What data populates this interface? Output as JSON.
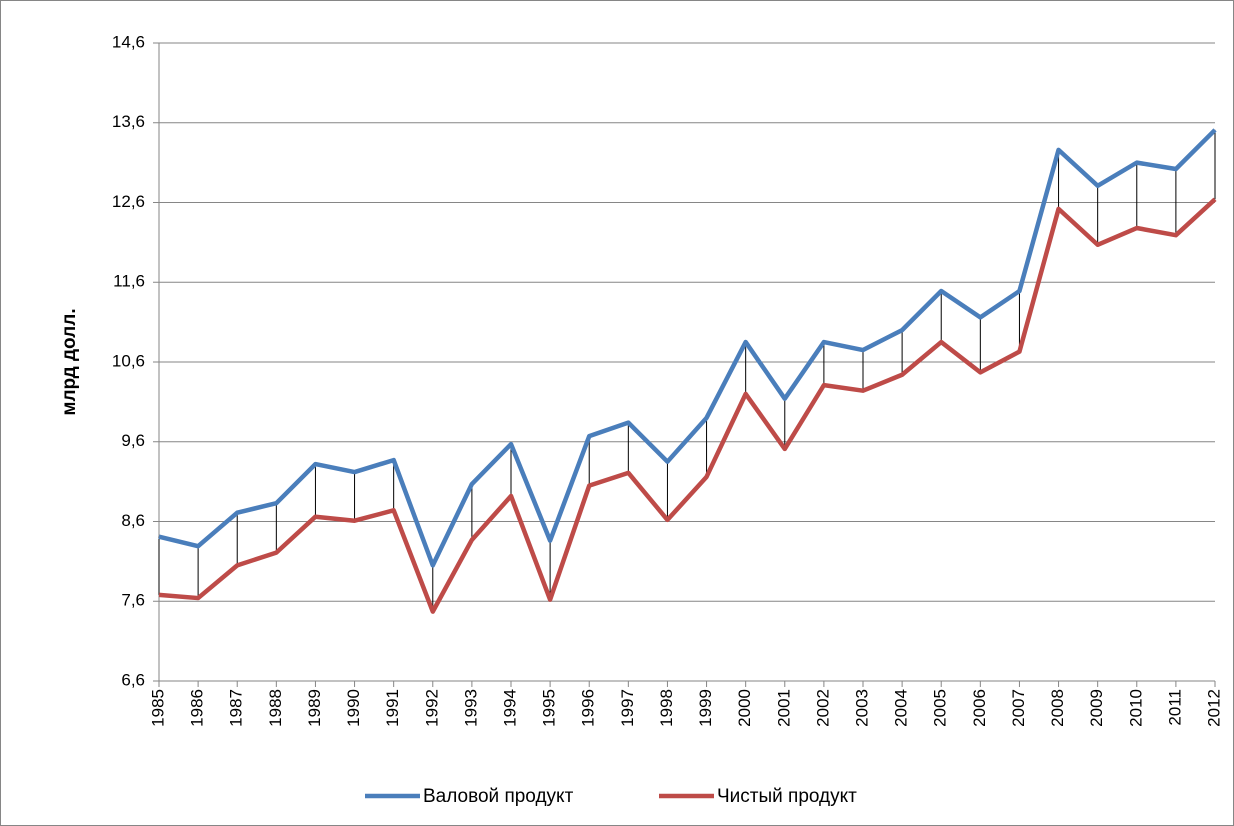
{
  "chart_data": {
    "type": "line",
    "y_label": "млрд долл.",
    "categories": [
      "1985",
      "1986",
      "1987",
      "1988",
      "1989",
      "1990",
      "1991",
      "1992",
      "1993",
      "1994",
      "1995",
      "1996",
      "1997",
      "1998",
      "1999",
      "2000",
      "2001",
      "2002",
      "2003",
      "2004",
      "2005",
      "2006",
      "2007",
      "2008",
      "2009",
      "2010",
      "2011",
      "2012"
    ],
    "series": [
      {
        "name": "Валовой продукт",
        "color": "#4a7ebb",
        "values": [
          8.41,
          8.29,
          8.71,
          8.83,
          9.32,
          9.22,
          9.37,
          8.05,
          9.07,
          9.57,
          8.36,
          9.67,
          9.84,
          9.35,
          9.9,
          10.85,
          10.14,
          10.85,
          10.75,
          11.0,
          11.49,
          11.16,
          11.49,
          13.26,
          12.81,
          13.1,
          13.02,
          13.51
        ]
      },
      {
        "name": "Чистый продукт",
        "color": "#be4b48",
        "values": [
          7.68,
          7.64,
          8.05,
          8.21,
          8.66,
          8.61,
          8.74,
          7.47,
          8.37,
          8.92,
          7.62,
          9.05,
          9.21,
          8.62,
          9.16,
          10.2,
          9.51,
          10.31,
          10.24,
          10.44,
          10.85,
          10.47,
          10.73,
          12.52,
          12.07,
          12.28,
          12.19,
          12.64
        ]
      }
    ],
    "ylim": [
      6.6,
      14.6
    ],
    "yticks": [
      {
        "value": 6.6,
        "label": "6,6"
      },
      {
        "value": 7.6,
        "label": "7,6"
      },
      {
        "value": 8.6,
        "label": "8,6"
      },
      {
        "value": 9.6,
        "label": "9,6"
      },
      {
        "value": 10.6,
        "label": "10,6"
      },
      {
        "value": 11.6,
        "label": "11,6"
      },
      {
        "value": 12.6,
        "label": "12,6"
      },
      {
        "value": 13.6,
        "label": "13,6"
      },
      {
        "value": 14.6,
        "label": "14,6"
      }
    ],
    "grid": true,
    "high_low_lines": true,
    "legend": "bottom"
  }
}
